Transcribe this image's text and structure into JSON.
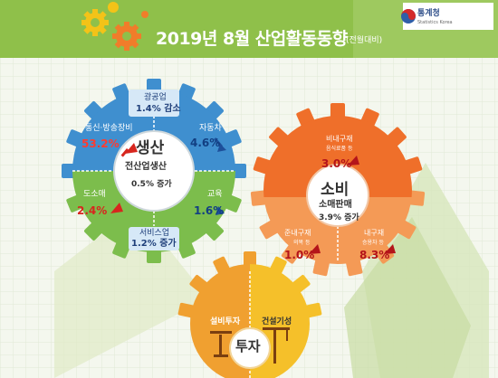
{
  "header": {
    "title": "2019년 8월 산업활동동향",
    "subtitle": "(전월대비)",
    "logo_name": "통계청",
    "logo_sub": "Statistics Korea",
    "colors": {
      "banner": "#8fc04a",
      "gear_yellow": "#f3c318",
      "gear_orange": "#f07d2a",
      "gear_green": "#7ab648"
    }
  },
  "production": {
    "title": "생산",
    "subtitle": "전산업생산",
    "value": "0.5% 증가",
    "mining": {
      "label": "광공업",
      "value": "1.4% 감소"
    },
    "telecom": {
      "label": "통신·방송장비",
      "value": "53.2%",
      "direction": "up"
    },
    "automobile": {
      "label": "자동차",
      "value": "4.6%",
      "direction": "down"
    },
    "cosmetics": {
      "label": "도소매",
      "value": "2.4%",
      "direction": "up"
    },
    "education": {
      "label": "교육",
      "value": "1.6%",
      "direction": "down"
    },
    "services": {
      "label": "서비스업",
      "value": "1.2% 증가"
    },
    "colors": {
      "top": "#3f8fcf",
      "bottom": "#7cbd4c",
      "box": "#d6e8f7"
    }
  },
  "consumption": {
    "title": "소비",
    "subtitle": "소매판매",
    "value": "3.9% 증가",
    "nondurable": {
      "label": "비내구재",
      "sub": "음식료품 등",
      "value": "3.0%",
      "direction": "up"
    },
    "semidurable": {
      "label": "준내구재",
      "sub": "의복 등",
      "value": "1.0%",
      "direction": "up"
    },
    "durable": {
      "label": "내구재",
      "sub": "승용차 등",
      "value": "8.3%",
      "direction": "up"
    },
    "colors": {
      "top": "#ef6f2a",
      "bottom": "#f49a56"
    }
  },
  "investment": {
    "title": "투자",
    "facility": {
      "label": "설비투자"
    },
    "construction": {
      "label": "건설기성"
    },
    "colors": {
      "left": "#f0a030",
      "right": "#f5c02a"
    }
  }
}
